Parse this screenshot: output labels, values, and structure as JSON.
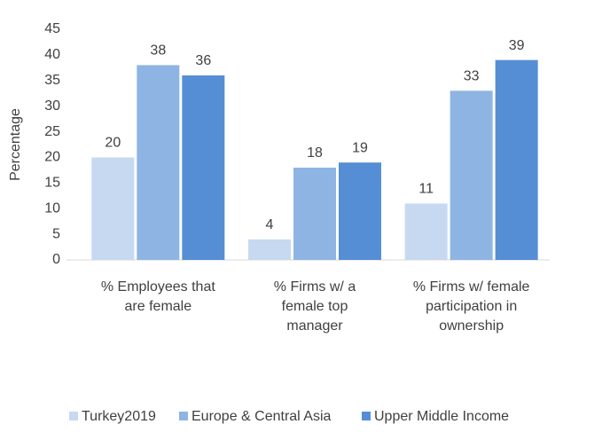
{
  "chart_data": {
    "type": "bar",
    "y_label": "Percentage",
    "categories": [
      "% Employees that are female",
      "% Firms w/ a female top manager",
      "% Firms w/ female participation in ownership"
    ],
    "series": [
      {
        "name": "Turkey2019",
        "color": "#c6d9f1",
        "values": [
          20,
          4,
          11
        ]
      },
      {
        "name": "Europe & Central Asia",
        "color": "#8eb4e3",
        "values": [
          38,
          18,
          33
        ]
      },
      {
        "name": "Upper Middle Income",
        "color": "#558ed5",
        "values": [
          36,
          19,
          39
        ]
      }
    ],
    "ylim": [
      0,
      45
    ],
    "yticks": [
      0,
      5,
      10,
      15,
      20,
      25,
      30,
      35,
      40,
      45
    ],
    "grid": false,
    "legend": "bottom"
  }
}
